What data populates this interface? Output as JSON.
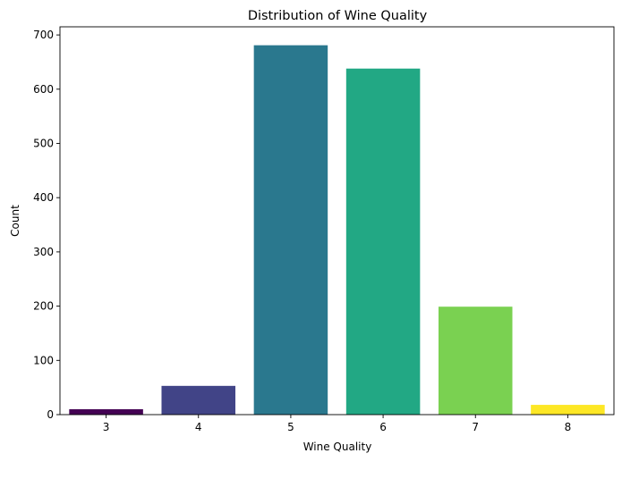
{
  "chart_data": {
    "type": "bar",
    "title": "Distribution of Wine Quality",
    "xlabel": "Wine Quality",
    "ylabel": "Count",
    "categories": [
      "3",
      "4",
      "5",
      "6",
      "7",
      "8"
    ],
    "values": [
      10,
      53,
      681,
      638,
      199,
      18
    ],
    "colors": [
      "#440154",
      "#414487",
      "#2a788e",
      "#22a884",
      "#7ad151",
      "#fde725"
    ],
    "ylim": [
      0,
      715
    ],
    "yticks": [
      0,
      100,
      200,
      300,
      400,
      500,
      600,
      700
    ],
    "grid": false,
    "legend": "none"
  }
}
